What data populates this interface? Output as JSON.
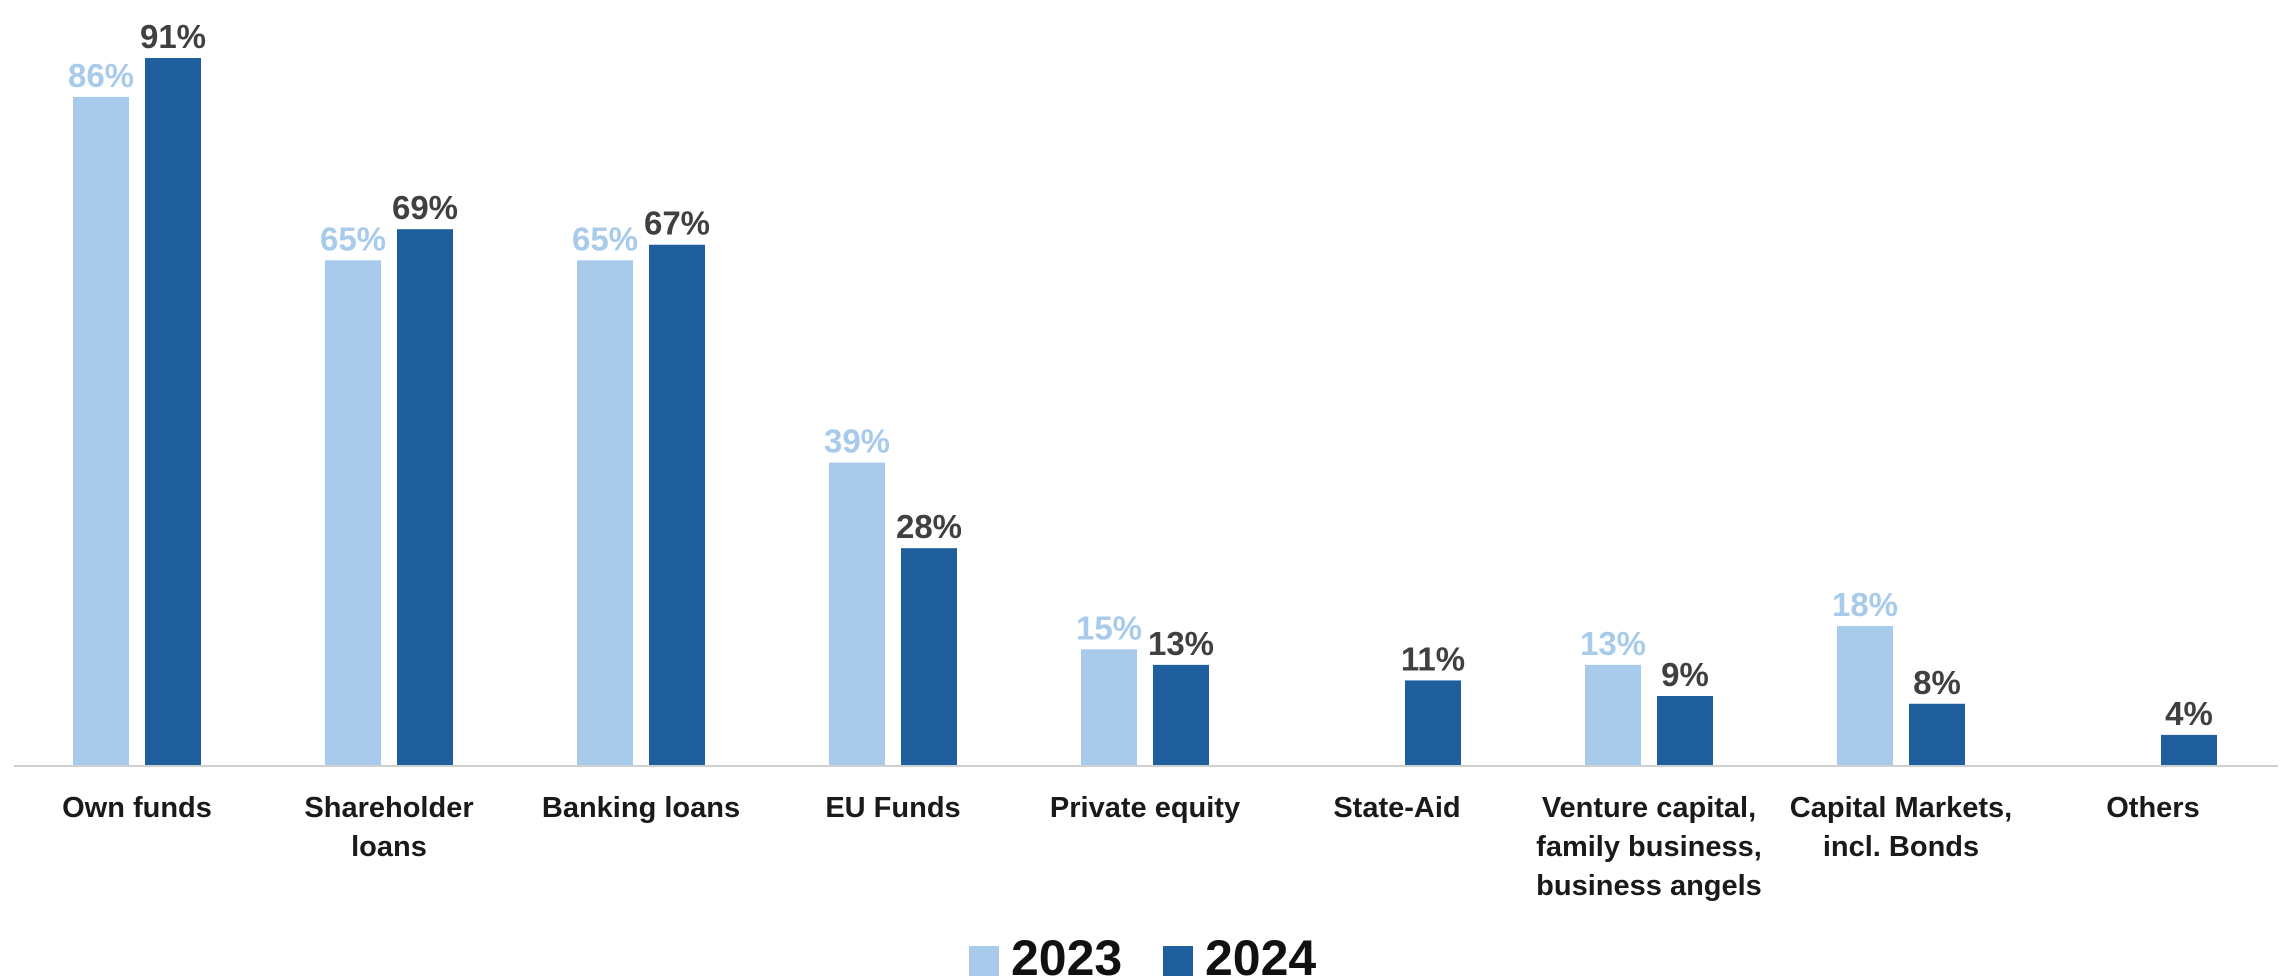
{
  "chart_data": {
    "type": "bar",
    "categories": [
      "Own funds",
      "Shareholder loans",
      "Banking loans",
      "EU Funds",
      "Private equity",
      "State-Aid",
      "Venture capital, family business, business angels",
      "Capital Markets, incl. Bonds",
      "Others"
    ],
    "category_lines": [
      [
        "Own funds"
      ],
      [
        "Shareholder",
        "loans"
      ],
      [
        "Banking loans"
      ],
      [
        "EU Funds"
      ],
      [
        "Private equity"
      ],
      [
        "State-Aid"
      ],
      [
        "Venture capital,",
        "family business,",
        "business angels"
      ],
      [
        "Capital Markets,",
        "incl. Bonds"
      ],
      [
        "Others"
      ]
    ],
    "series": [
      {
        "name": "2023",
        "color": "#a8cbec",
        "label_color": "#a8cbec",
        "values": [
          86,
          65,
          65,
          39,
          15,
          null,
          13,
          18,
          null
        ],
        "labels": [
          "86%",
          "65%",
          "65%",
          "39%",
          "15%",
          "",
          "13%",
          "18%",
          ""
        ]
      },
      {
        "name": "2024",
        "color": "#1f5f9e",
        "label_color": "#404040",
        "values": [
          91,
          69,
          67,
          28,
          13,
          11,
          9,
          8,
          4
        ],
        "labels": [
          "91%",
          "69%",
          "67%",
          "28%",
          "13%",
          "11%",
          "9%",
          "8%",
          "4%"
        ]
      }
    ],
    "ylim": [
      0,
      100
    ],
    "unit": "%",
    "grid": false,
    "legend_position": "bottom-center",
    "title": "",
    "xlabel": "",
    "ylabel": ""
  }
}
